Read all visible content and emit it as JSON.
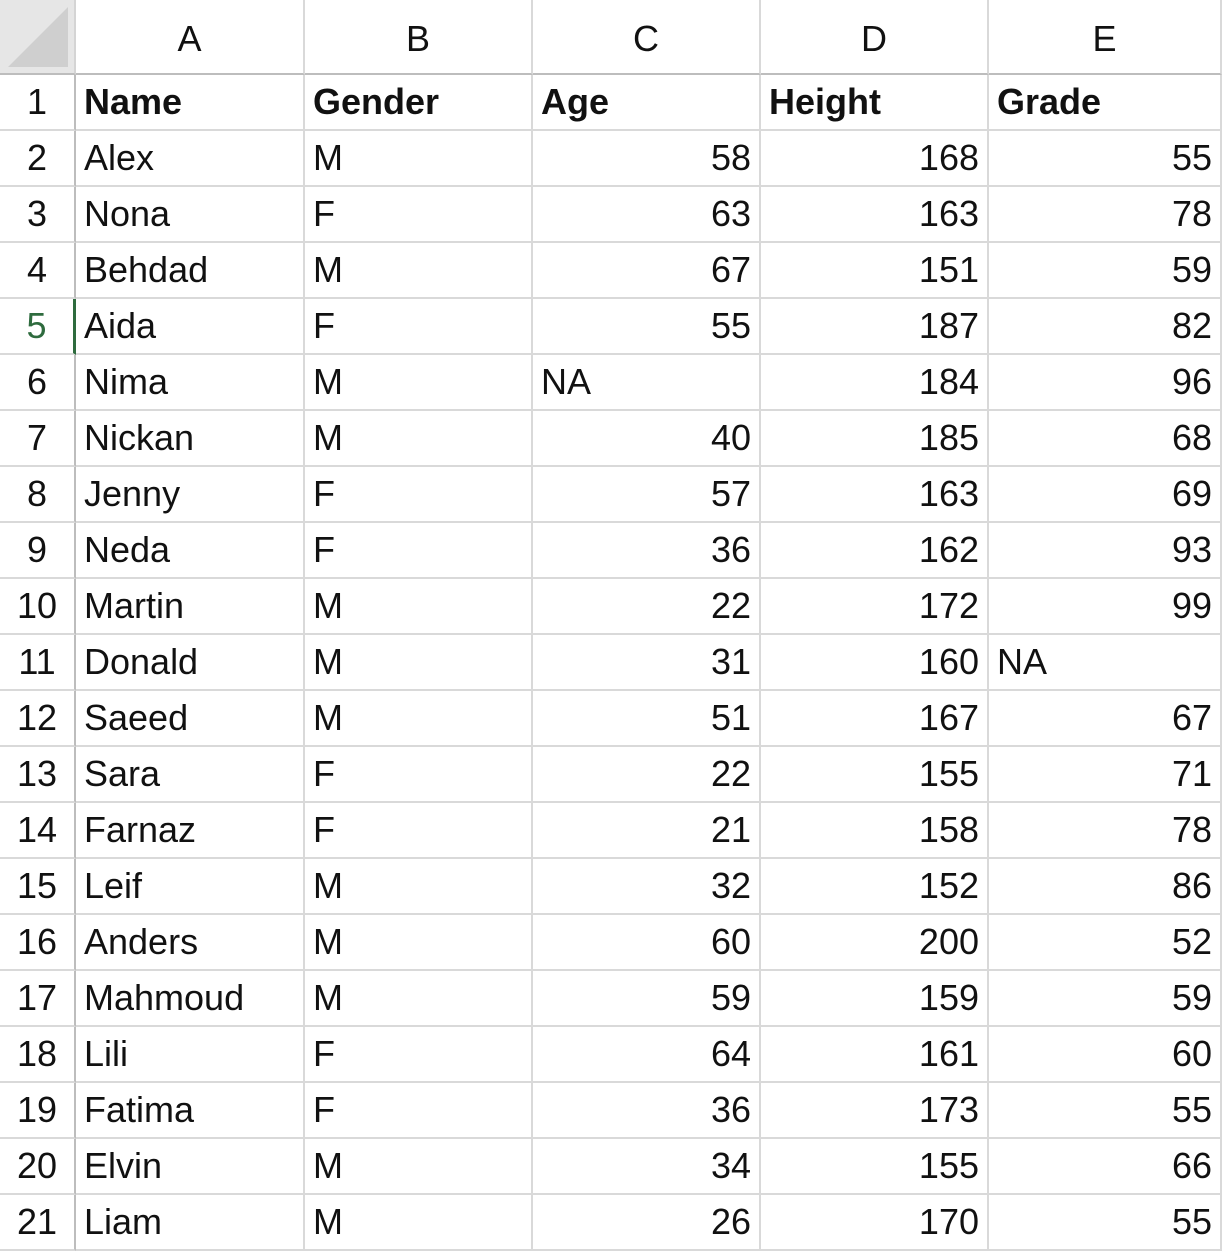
{
  "columns": [
    "A",
    "B",
    "C",
    "D",
    "E"
  ],
  "active_row": 5,
  "colors": {
    "active_row_header": "#2e6b3e",
    "gridline": "#d9d9d9",
    "header_border": "#bdbdbd"
  },
  "rows": [
    {
      "number": "1",
      "cells": [
        "Name",
        "Gender",
        "Age",
        "Height",
        "Grade"
      ],
      "header": true
    },
    {
      "number": "2",
      "cells": [
        "Alex",
        "M",
        "58",
        "168",
        "55"
      ]
    },
    {
      "number": "3",
      "cells": [
        "Nona",
        "F",
        "63",
        "163",
        "78"
      ]
    },
    {
      "number": "4",
      "cells": [
        "Behdad",
        "M",
        "67",
        "151",
        "59"
      ]
    },
    {
      "number": "5",
      "cells": [
        "Aida",
        "F",
        "55",
        "187",
        "82"
      ]
    },
    {
      "number": "6",
      "cells": [
        "Nima",
        "M",
        "NA",
        "184",
        "96"
      ]
    },
    {
      "number": "7",
      "cells": [
        "Nickan",
        "M",
        "40",
        "185",
        "68"
      ]
    },
    {
      "number": "8",
      "cells": [
        "Jenny",
        "F",
        "57",
        "163",
        "69"
      ]
    },
    {
      "number": "9",
      "cells": [
        "Neda",
        "F",
        "36",
        "162",
        "93"
      ]
    },
    {
      "number": "10",
      "cells": [
        "Martin",
        "M",
        "22",
        "172",
        "99"
      ]
    },
    {
      "number": "11",
      "cells": [
        "Donald",
        "M",
        "31",
        "160",
        "NA"
      ]
    },
    {
      "number": "12",
      "cells": [
        "Saeed",
        "M",
        "51",
        "167",
        "67"
      ]
    },
    {
      "number": "13",
      "cells": [
        "Sara",
        "F",
        "22",
        "155",
        "71"
      ]
    },
    {
      "number": "14",
      "cells": [
        "Farnaz",
        "F",
        "21",
        "158",
        "78"
      ]
    },
    {
      "number": "15",
      "cells": [
        "Leif",
        "M",
        "32",
        "152",
        "86"
      ]
    },
    {
      "number": "16",
      "cells": [
        "Anders",
        "M",
        "60",
        "200",
        "52"
      ]
    },
    {
      "number": "17",
      "cells": [
        "Mahmoud",
        "M",
        "59",
        "159",
        "59"
      ]
    },
    {
      "number": "18",
      "cells": [
        "Lili",
        "F",
        "64",
        "161",
        "60"
      ]
    },
    {
      "number": "19",
      "cells": [
        "Fatima",
        "F",
        "36",
        "173",
        "55"
      ]
    },
    {
      "number": "20",
      "cells": [
        "Elvin",
        "M",
        "34",
        "155",
        "66"
      ]
    },
    {
      "number": "21",
      "cells": [
        "Liam",
        "M",
        "26",
        "170",
        "55"
      ]
    }
  ]
}
